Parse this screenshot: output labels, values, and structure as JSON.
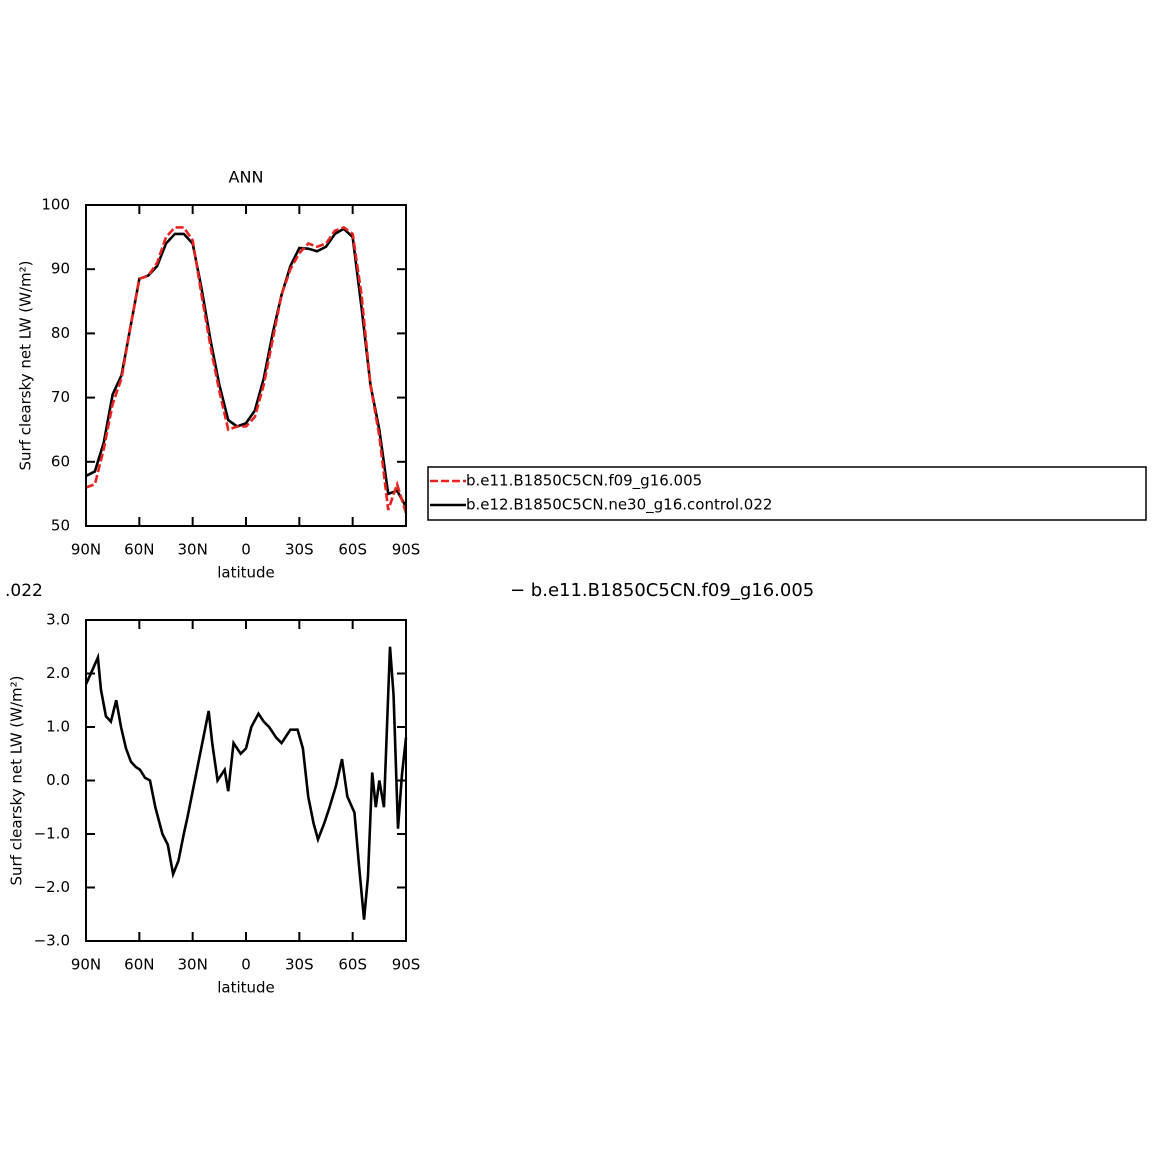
{
  "chart_data": [
    {
      "type": "line",
      "title": "ANN",
      "xlabel": "latitude",
      "ylabel": "Surf clearsky net LW (W/m²)",
      "x": [
        90,
        85,
        80,
        75,
        70,
        65,
        60,
        55,
        50,
        45,
        40,
        35,
        30,
        25,
        20,
        15,
        10,
        5,
        0,
        -5,
        -10,
        -15,
        -20,
        -25,
        -30,
        -35,
        -40,
        -45,
        -50,
        -55,
        -60,
        -65,
        -70,
        -75,
        -80,
        -85,
        -90
      ],
      "series": [
        {
          "name": "b.e11.B1850C5CN.f09_g16.005",
          "color": "#e8231f",
          "dash": true,
          "values": [
            56,
            56.5,
            62,
            69,
            73,
            81,
            88.5,
            89,
            91,
            95,
            96.5,
            96.5,
            94.5,
            86,
            78,
            71,
            65,
            65.5,
            65.5,
            67,
            72,
            79,
            86,
            90,
            92.5,
            94,
            93.5,
            94,
            96,
            96.5,
            95.5,
            86,
            72,
            64,
            52.5,
            56.5,
            52
          ]
        },
        {
          "name": "b.e12.B1850C5CN.ne30_g16.control.022",
          "color": "#000000",
          "dash": false,
          "values": [
            57.8,
            58.5,
            63,
            70.5,
            73.5,
            81,
            88.5,
            89,
            90.5,
            94,
            95.5,
            95.5,
            94,
            87,
            79,
            72,
            66.5,
            65.5,
            66,
            68,
            73,
            80,
            86,
            90.5,
            93.3,
            93.2,
            92.8,
            93.5,
            95.5,
            96.3,
            95,
            84,
            72,
            65,
            55,
            55.5,
            53
          ]
        }
      ],
      "xlim": [
        90,
        -90
      ],
      "xticks": [
        {
          "value": 90,
          "label": "90N"
        },
        {
          "value": 60,
          "label": "60N"
        },
        {
          "value": 30,
          "label": "30N"
        },
        0,
        {
          "value": -30,
          "label": "30S"
        },
        {
          "value": -60,
          "label": "60S"
        },
        {
          "value": -90,
          "label": "90S"
        }
      ],
      "ylim": [
        50,
        100
      ],
      "yticks": [
        50,
        60,
        70,
        80,
        90,
        100
      ],
      "legend": "right"
    },
    {
      "type": "line",
      "title_left": ".022",
      "title_right": "− b.e11.B1850C5CN.f09_g16.005",
      "xlabel": "latitude",
      "ylabel": "Surf clearsky net LW (W/m²)",
      "x": [
        90,
        86.6,
        83.3,
        81.6,
        78.8,
        76,
        73,
        70.3,
        67.5,
        64.7,
        61.9,
        59.6,
        56.8,
        54,
        51,
        47,
        44,
        41,
        38,
        35,
        33,
        30,
        27,
        24,
        21,
        19,
        16,
        12,
        10,
        7,
        3,
        0,
        -3,
        -7,
        -10,
        -13,
        -17,
        -20,
        -25,
        -29,
        -32,
        -35,
        -38,
        -40.5,
        -44,
        -47,
        -50.6,
        -54,
        -57,
        -61,
        -63.6,
        -66.4,
        -68.6,
        -71,
        -73,
        -75,
        -77.6,
        -81,
        -83,
        -85.5,
        -87.7,
        -90
      ],
      "color": "#000000",
      "values": [
        1.8,
        2.05,
        2.3,
        1.7,
        1.2,
        1.1,
        1.5,
        1.0,
        0.6,
        0.35,
        0.25,
        0.2,
        0.05,
        0.0,
        -0.5,
        -1.0,
        -1.2,
        -1.75,
        -1.5,
        -1.0,
        -0.7,
        -0.2,
        0.3,
        0.8,
        1.3,
        0.7,
        0.0,
        0.2,
        -0.2,
        0.7,
        0.5,
        0.6,
        1.0,
        1.25,
        1.1,
        1.0,
        0.8,
        0.7,
        0.95,
        0.95,
        0.6,
        -0.3,
        -0.8,
        -1.1,
        -0.8,
        -0.5,
        -0.1,
        0.4,
        -0.3,
        -0.6,
        -1.6,
        -2.6,
        -1.8,
        0.15,
        -0.5,
        0.0,
        -0.5,
        2.5,
        1.6,
        -0.9,
        0.1,
        0.8
      ],
      "xlim": [
        90,
        -90
      ],
      "xticks": [
        {
          "value": 90,
          "label": "90N"
        },
        {
          "value": 60,
          "label": "60N"
        },
        {
          "value": 30,
          "label": "30N"
        },
        0,
        {
          "value": -30,
          "label": "30S"
        },
        {
          "value": -60,
          "label": "60S"
        },
        {
          "value": -90,
          "label": "90S"
        }
      ],
      "ylim": [
        -3,
        3
      ],
      "yticks": [
        {
          "value": -3,
          "label": "−3.0"
        },
        {
          "value": -2,
          "label": "−2.0"
        },
        {
          "value": -1,
          "label": "−1.0"
        },
        {
          "value": 0,
          "label": "0.0"
        },
        {
          "value": 1,
          "label": "1.0"
        },
        {
          "value": 2,
          "label": "2.0"
        },
        {
          "value": 3,
          "label": "3.0"
        }
      ]
    }
  ]
}
